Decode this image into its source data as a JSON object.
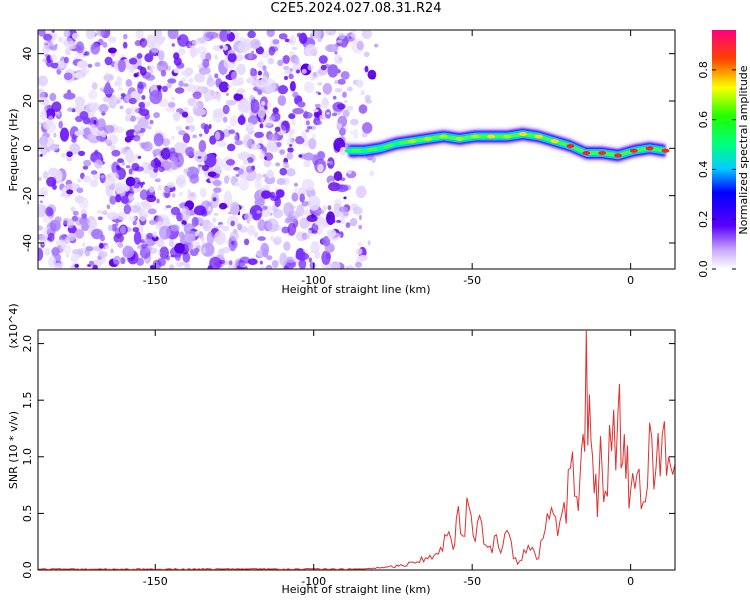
{
  "title": "C2E5.2024.027.08.31.R24",
  "chart_data": [
    {
      "type": "heatmap",
      "xlabel": "Height of straight line (km)",
      "ylabel": "Frequency (Hz)",
      "xlim": [
        -187,
        14
      ],
      "ylim": [
        -51,
        50
      ],
      "xticks": [
        -150,
        -100,
        -50,
        0
      ],
      "yticks": [
        -40,
        -20,
        0,
        20,
        40
      ],
      "colorbar": {
        "label": "Normalized spectral amplitude",
        "range": [
          0,
          0.96
        ],
        "ticks": [
          0.0,
          0.2,
          0.4,
          0.6,
          0.8
        ],
        "tick_labels": [
          "0.0",
          "0.2",
          "0.4",
          "0.6",
          "0.8"
        ]
      },
      "noise_region_x": [
        -187,
        -80
      ],
      "signal_ridge": {
        "x": [
          -89,
          -84,
          -79,
          -74,
          -69,
          -64,
          -59,
          -54,
          -49,
          -44,
          -39,
          -34,
          -29,
          -24,
          -19,
          -14,
          -9,
          -4,
          1,
          6,
          11
        ],
        "frequency": [
          -1,
          -1,
          0,
          2,
          3,
          4,
          5,
          4,
          5,
          5,
          5,
          6,
          5,
          3,
          1,
          -2,
          -2,
          -3,
          -1,
          0,
          -1
        ],
        "peak_amplitude": [
          0.3,
          0.3,
          0.35,
          0.4,
          0.5,
          0.55,
          0.6,
          0.55,
          0.6,
          0.65,
          0.6,
          0.7,
          0.75,
          0.7,
          0.8,
          0.85,
          0.85,
          0.9,
          0.9,
          0.85,
          0.85
        ]
      }
    },
    {
      "type": "line",
      "xlabel": "Height of straight line (km)",
      "ylabel": "SNR (10 * v/v)",
      "yunit": "(x10^4)",
      "xlim": [
        -187,
        14
      ],
      "ylim": [
        0,
        2.12
      ],
      "xticks": [
        -150,
        -100,
        -50,
        0
      ],
      "yticks": [
        0.0,
        0.5,
        1.0,
        1.5,
        2.0
      ],
      "ytick_labels": [
        "0.0",
        "0.5",
        "1.0",
        "1.5",
        "2.0"
      ],
      "series": [
        {
          "color": "#e03030",
          "x": [
            -187,
            -160,
            -130,
            -100,
            -85,
            -78,
            -72,
            -68,
            -64,
            -60,
            -58,
            -56,
            -55,
            -53,
            -51,
            -49,
            -47,
            -45,
            -43,
            -41,
            -39,
            -37,
            -35,
            -33,
            -31,
            -29,
            -27,
            -25,
            -23,
            -21,
            -19,
            -17,
            -16,
            -15,
            -14,
            -13.5,
            -13,
            -12,
            -11,
            -10,
            -9,
            -8,
            -6,
            -4,
            -3,
            -2,
            -1,
            0,
            2,
            4,
            6,
            8,
            10,
            12,
            14
          ],
          "y": [
            0.01,
            0.01,
            0.01,
            0.01,
            0.01,
            0.02,
            0.04,
            0.06,
            0.1,
            0.2,
            0.3,
            0.18,
            0.45,
            0.3,
            0.56,
            0.25,
            0.42,
            0.2,
            0.3,
            0.15,
            0.35,
            0.1,
            0.08,
            0.15,
            0.2,
            0.1,
            0.35,
            0.55,
            0.3,
            0.6,
            0.9,
            0.65,
            0.8,
            1.2,
            2.12,
            1.1,
            1.55,
            1.0,
            0.85,
            0.8,
            0.9,
            0.7,
            1.05,
            1.4,
            0.9,
            1.2,
            1.1,
            0.7,
            0.85,
            0.6,
            1.3,
            0.9,
            1.2,
            1.0,
            0.95
          ]
        }
      ]
    }
  ]
}
